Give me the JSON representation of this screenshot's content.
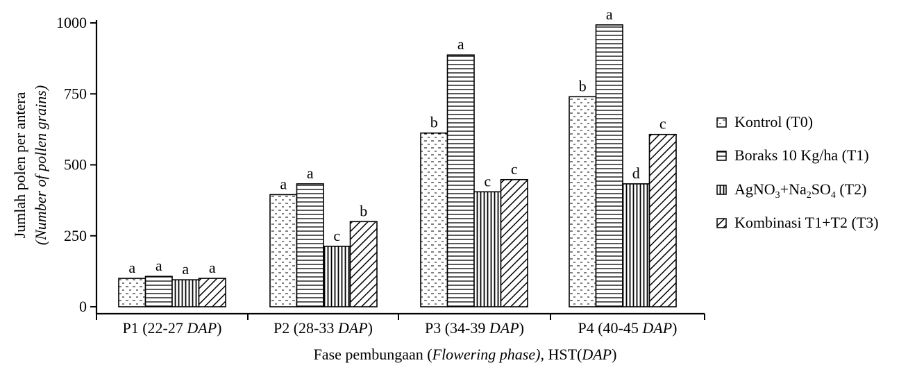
{
  "chart_data": {
    "type": "bar",
    "xlabel": {
      "parts": [
        {
          "text": "Fase pembungaan (",
          "italic": false
        },
        {
          "text": "Flowering phase),",
          "italic": true
        },
        {
          "text": " HST(",
          "italic": false
        },
        {
          "text": "DAP",
          "italic": true
        },
        {
          "text": ")",
          "italic": false
        }
      ]
    },
    "ylabel": {
      "line1": "Jumlah polen per antera",
      "line2": "(Number of pollen grains)"
    },
    "ylim": [
      0,
      1000
    ],
    "yticks": [
      0,
      250,
      500,
      750,
      1000
    ],
    "categories": [
      {
        "prefix": "P1 (22-27 ",
        "italic": "DAP",
        "suffix": ")"
      },
      {
        "prefix": "P2 (28-33 ",
        "italic": "DAP",
        "suffix": ")"
      },
      {
        "prefix": "P3 (34-39 ",
        "italic": "DAP",
        "suffix": ")"
      },
      {
        "prefix": "P4 (40-45 ",
        "italic": "DAP",
        "suffix": ")"
      }
    ],
    "series": [
      {
        "name": "Kontrol (T0)",
        "pattern": "dots",
        "values": [
          100,
          395,
          612,
          740
        ],
        "letters": [
          "a",
          "a",
          "b",
          "b"
        ]
      },
      {
        "name": "Boraks 10 Kg/ha (T1)",
        "pattern": "horizontal",
        "values": [
          107,
          433,
          887,
          993
        ],
        "letters": [
          "a",
          "a",
          "a",
          "a"
        ]
      },
      {
        "name": "AgNO3+Na2SO4 (T2)",
        "pattern": "vertical",
        "values": [
          95,
          213,
          405,
          433
        ],
        "letters": [
          "a",
          "c",
          "c",
          "d"
        ]
      },
      {
        "name": "Kombinasi T1+T2 (T3)",
        "pattern": "diagonal",
        "values": [
          100,
          300,
          448,
          607
        ],
        "letters": [
          "a",
          "b",
          "c",
          "c"
        ]
      }
    ],
    "legend_position": "right",
    "grid": false
  }
}
